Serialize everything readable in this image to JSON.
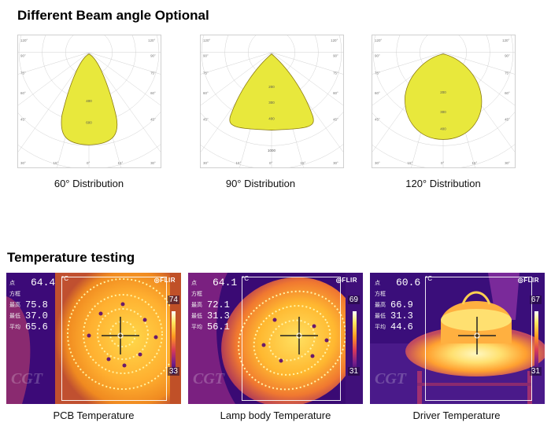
{
  "section_beam": {
    "title": "Different Beam angle Optional"
  },
  "section_temp": {
    "title": "Temperature testing"
  },
  "polar_charts": [
    {
      "caption": "60° Distribution",
      "rings": [
        "400",
        "600"
      ],
      "angle_labels": [
        "120°",
        "90°",
        "75°",
        "60°",
        "45°",
        "30°",
        "15°",
        "0°",
        "15°",
        "30°"
      ]
    },
    {
      "caption": "90° Distribution",
      "rings": [
        "200",
        "300",
        "400"
      ],
      "bottom": "1000",
      "angle_labels": [
        "120°",
        "90°",
        "75°",
        "60°",
        "45°",
        "30°",
        "15°",
        "0°",
        "15°",
        "30°"
      ]
    },
    {
      "caption": "120° Distribution",
      "rings": [
        "200",
        "300",
        "400"
      ],
      "angle_labels": [
        "120°",
        "90°",
        "75°",
        "60°",
        "45°",
        "30°",
        "15°",
        "0°",
        "15°",
        "30°"
      ]
    }
  ],
  "thermal_images": [
    {
      "caption": "PCB Temperature",
      "spot_label": "点",
      "spot": "64.4",
      "box_label": "方框",
      "max_label": "最高",
      "max": "75.8",
      "min_label": "最低",
      "min": "37.0",
      "avg_label": "平均",
      "avg": "65.6",
      "unit": "°C",
      "scale_high": "74",
      "scale_low": "33",
      "brand": "FLIR",
      "watermark": "CGT"
    },
    {
      "caption": "Lamp body Temperature",
      "spot_label": "点",
      "spot": "64.1",
      "box_label": "方框",
      "max_label": "最高",
      "max": "72.1",
      "min_label": "最低",
      "min": "31.3",
      "avg_label": "平均",
      "avg": "56.1",
      "unit": "°C",
      "scale_high": "69",
      "scale_low": "31",
      "brand": "FLIR",
      "watermark": "CGT"
    },
    {
      "caption": "Driver Temperature",
      "spot_label": "点",
      "spot": "60.6",
      "box_label": "方框",
      "max_label": "最高",
      "max": "66.9",
      "min_label": "最低",
      "min": "31.3",
      "avg_label": "平均",
      "avg": "44.6",
      "unit": "°C",
      "scale_high": "67",
      "scale_low": "31",
      "brand": "FLIR",
      "watermark": "CGT"
    }
  ],
  "colors": {
    "beam_fill": "#e8e83c",
    "beam_stroke": "#8a7a10",
    "grid": "#cccccc"
  }
}
